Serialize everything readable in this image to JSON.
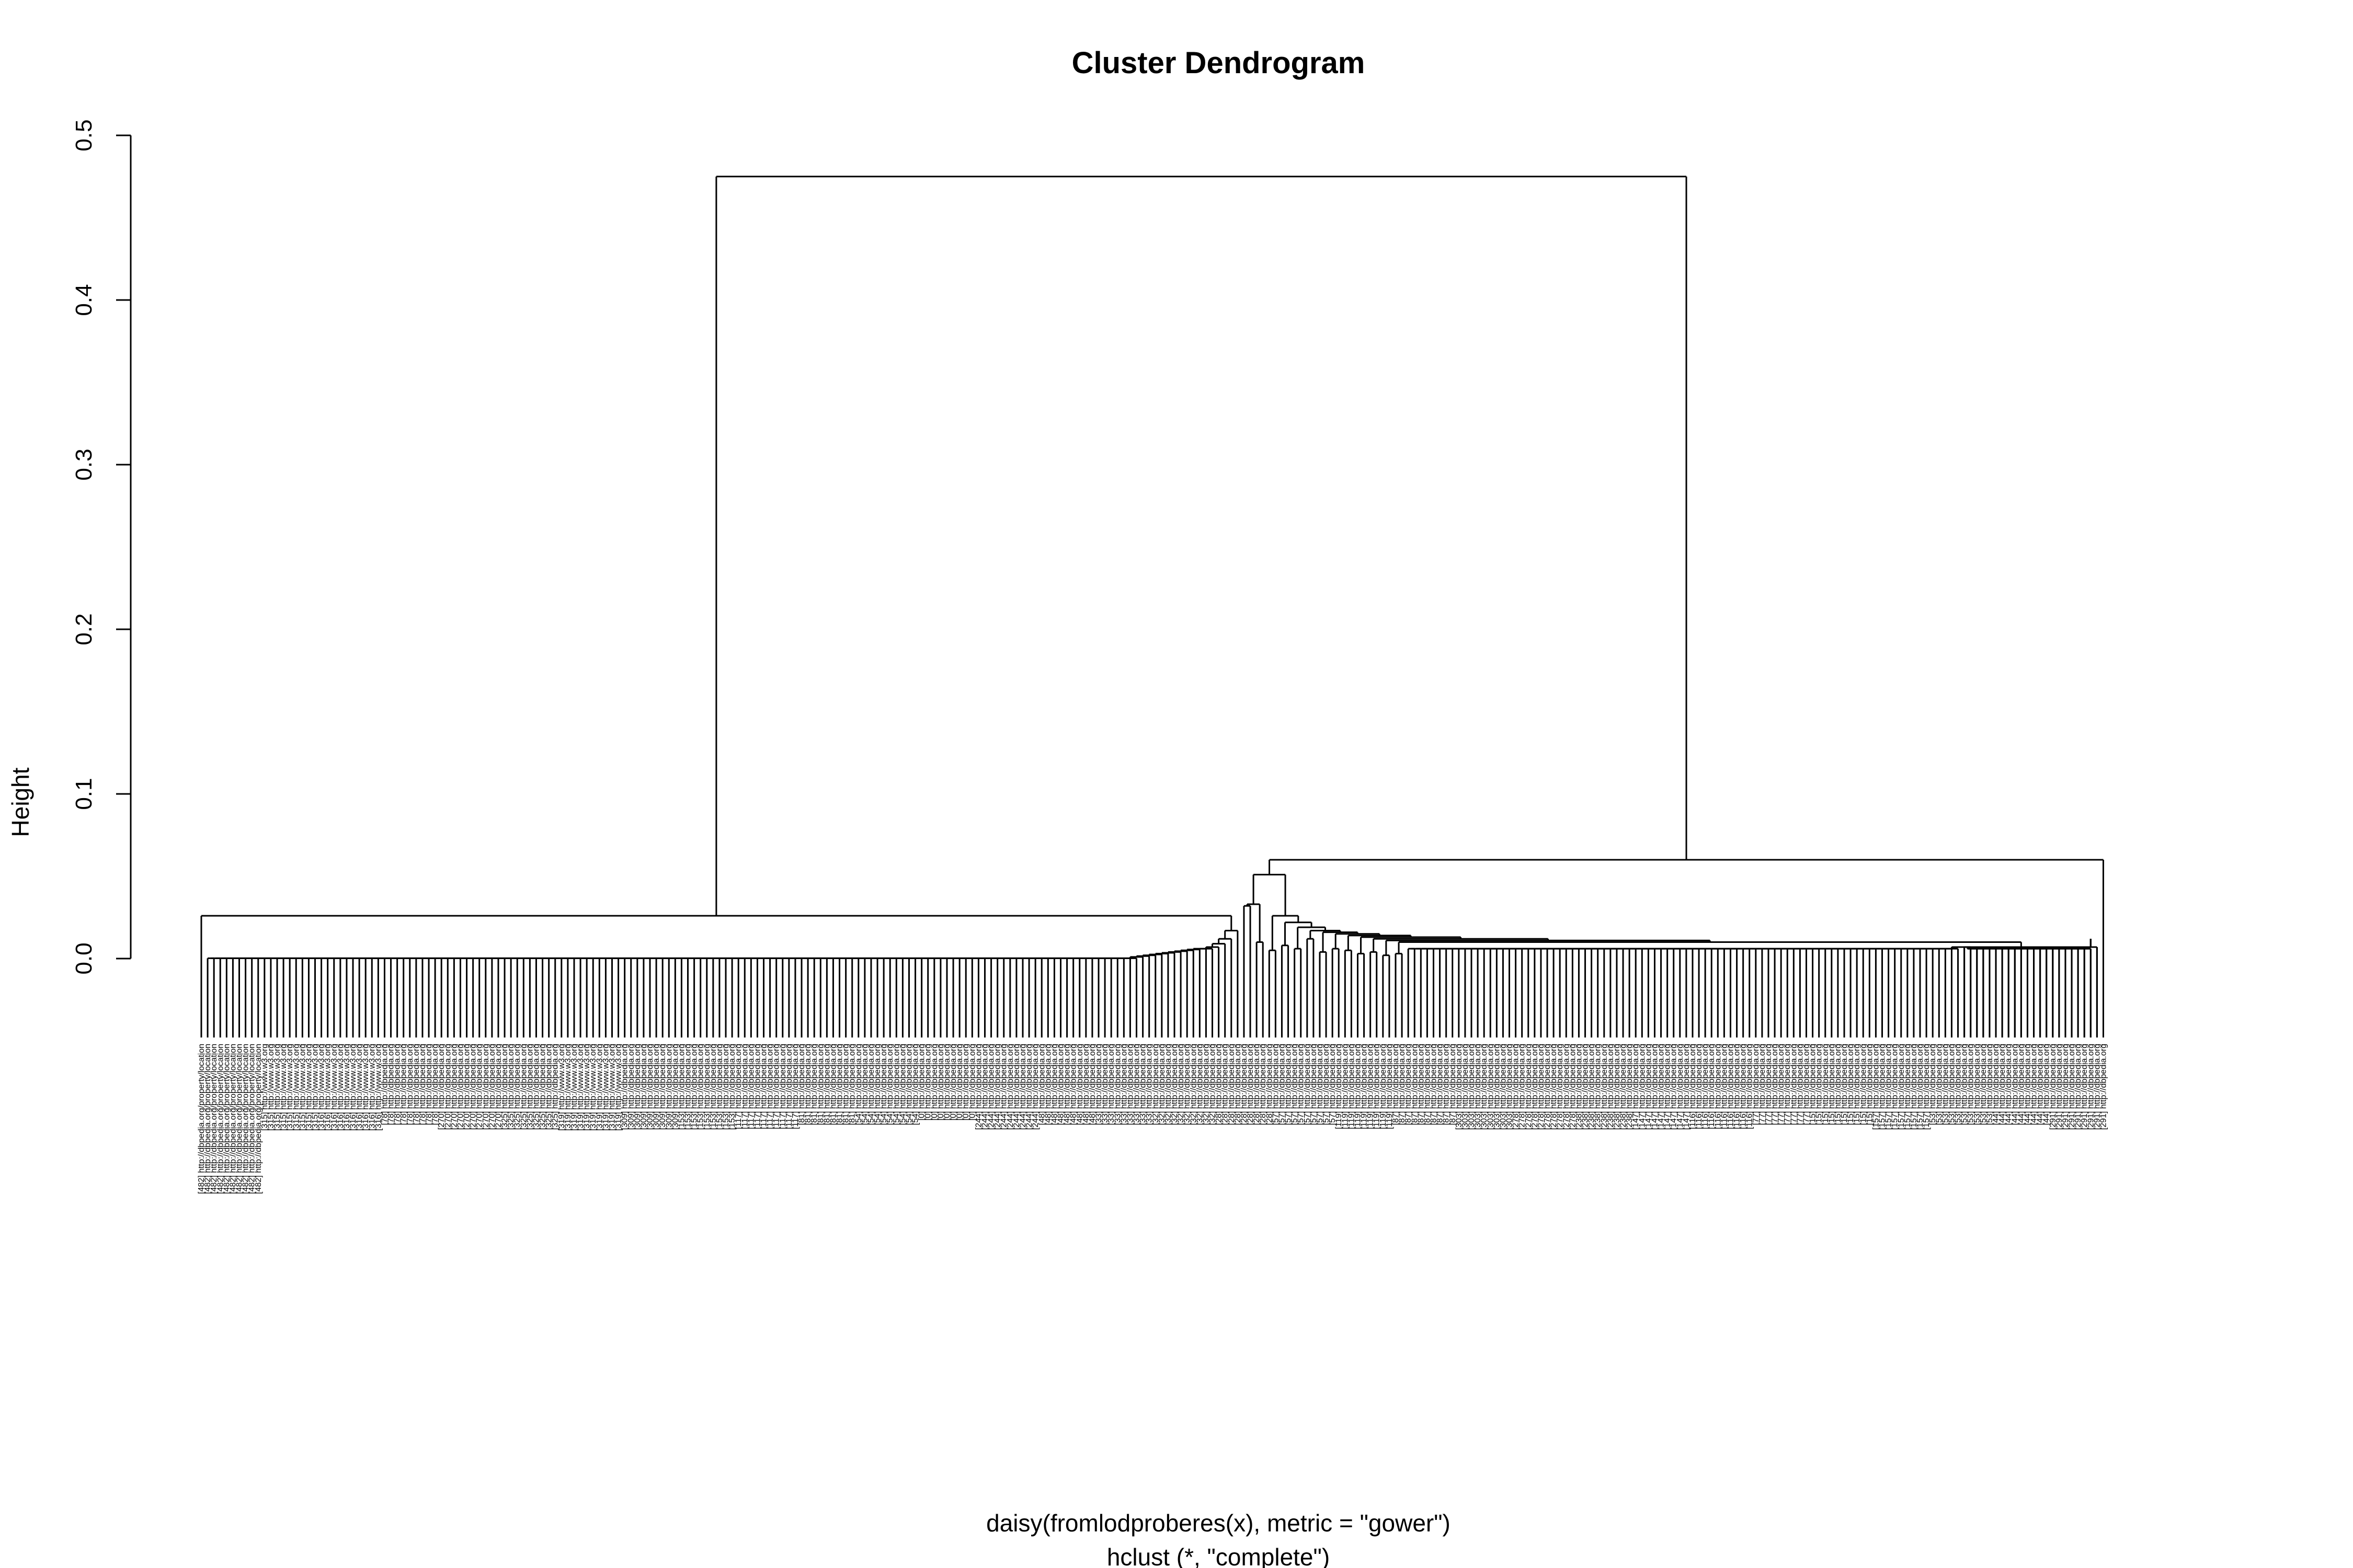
{
  "chart_data": {
    "type": "dendrogram",
    "title": "Cluster Dendrogram",
    "ylabel": "Height",
    "xlabel": "daisy(fromlodproberes(x), metric = \"gower\")",
    "sub": "hclust (*, \"complete\")",
    "ylim": [
      0,
      0.5
    ],
    "y_ticks": [
      "0.0",
      "0.1",
      "0.2",
      "0.3",
      "0.4",
      "0.5"
    ],
    "root_height": 0.475,
    "left_cluster": {
      "merge_heights": [
        0.026,
        0.017,
        0.012,
        0.009,
        0.007,
        0.006,
        0.006,
        0.0055,
        0.005,
        0.0045,
        0.004,
        0.0035,
        0.003,
        0.0025,
        0.002,
        0.0015,
        0.001
      ],
      "zero_height_leaves": 148
    },
    "right_cluster": {
      "merge_heights": [
        0.06,
        0.051,
        0.042,
        0.033,
        0.026,
        0.022,
        0.019,
        0.017,
        0.016,
        0.015,
        0.014,
        0.013,
        0.012,
        0.011,
        0.01,
        0.009,
        0.008,
        0.007
      ],
      "inner_heights": [
        0.032,
        0.01,
        0.005,
        0.008,
        0.006,
        0.012,
        0.004,
        0.006,
        0.005,
        0.003,
        0.004,
        0.002,
        0.003
      ],
      "flat_leaves": 88,
      "flat_height": 0.006,
      "tail_height": 0.012,
      "tail_leaves": 22
    },
    "leaf_labels": {
      "l0": "[482] http://dbpedia.org/property/location",
      "l1": "[315] http://www.w3.org",
      "l2": "[316] http://www.w3.org",
      "l3": "[78] http://dbpedia.org",
      "l4": "[270] http://dbpedia.org",
      "l5": "[325] http://dbpedia.org",
      "l6": "[319] http://www.w3.org",
      "l7": "[309] http://dbpedia.org",
      "l8": "[153] http://dbpedia.org",
      "l9": "[117] http://dbpedia.org",
      "l10": "[81] http://dbpedia.org",
      "l11": "[54] http://dbpedia.org",
      "l12": "[0] http://dbpedia.org",
      "l13": "[244] http://dbpedia.org",
      "l14": "[48] http://dbpedia.org",
      "l15": "[33] http://dbpedia.org",
      "l16": "[32] http://dbpedia.org",
      "l17": "[28] http://dbpedia.org",
      "l18": "[57] http://dbpedia.org",
      "l19": "[119] http://dbpedia.org",
      "l20": "[87] http://dbpedia.org",
      "l21": "[303] http://dbpedia.org",
      "l22": "[278] http://dbpedia.org",
      "l23": "[238] http://dbpedia.org",
      "l24": "[147] http://dbpedia.org",
      "l25": "[116] http://dbpedia.org",
      "l26": "[77] http://dbpedia.org",
      "l27": "[15] http://dbpedia.org",
      "l28": "[157] http://dbpedia.org",
      "l29": "[53] http://dbpedia.org",
      "l30": "[44] http://dbpedia.org",
      "l31": "[291] http://dbpedia.org"
    }
  }
}
